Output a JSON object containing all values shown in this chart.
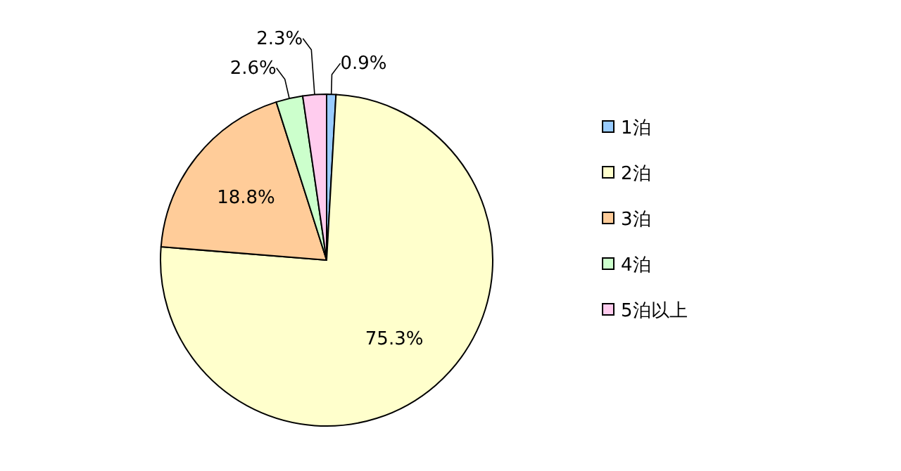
{
  "chart_data": {
    "type": "pie",
    "categories": [
      "1泊",
      "2泊",
      "3泊",
      "4泊",
      "5泊以上"
    ],
    "values": [
      0.9,
      75.3,
      18.8,
      2.6,
      2.3
    ],
    "colors": [
      "#99ccff",
      "#ffffcc",
      "#ffcc99",
      "#ccffcc",
      "#ffccee"
    ],
    "value_labels": [
      "0.9%",
      "75.3%",
      "18.8%",
      "2.6%",
      "2.3%"
    ],
    "legend": "right"
  }
}
